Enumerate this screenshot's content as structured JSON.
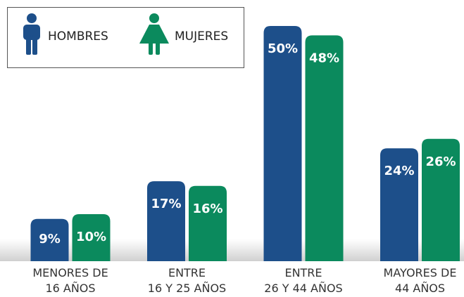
{
  "chart_data": {
    "type": "bar",
    "categories": [
      "MENORES DE\n16 AÑOS",
      "ENTRE\n16 Y 25 AÑOS",
      "ENTRE\n26 Y 44 AÑOS",
      "MAYORES DE\n44 AÑOS"
    ],
    "series": [
      {
        "name": "HOMBRES",
        "color": "#1d4f8a",
        "values": [
          9,
          17,
          50,
          24
        ],
        "value_labels": [
          "9%",
          "17%",
          "50%",
          "24%"
        ]
      },
      {
        "name": "MUJERES",
        "color": "#0b8a5d",
        "values": [
          10,
          16,
          48,
          26
        ],
        "value_labels": [
          "10%",
          "16%",
          "48%",
          "26%"
        ]
      }
    ]
  }
}
